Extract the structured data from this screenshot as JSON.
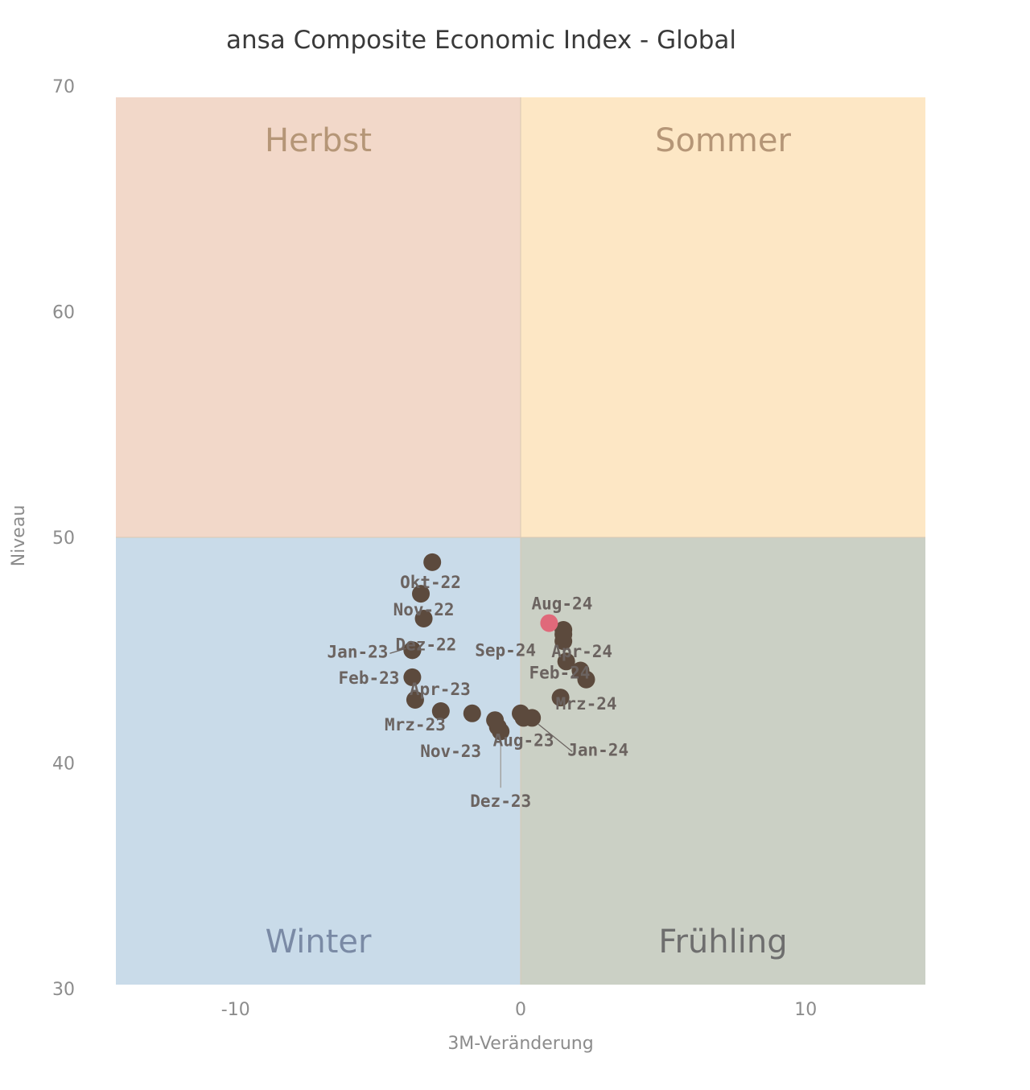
{
  "chart_data": {
    "type": "scatter",
    "title": "ansa Composite Economic Index - Global",
    "xlabel": "3M-Veränderung",
    "ylabel": "Niveau",
    "xlim": [
      -14.2,
      14.2
    ],
    "ylim": [
      30,
      70
    ],
    "x_ticks": [
      -10,
      0,
      10
    ],
    "y_ticks": [
      30,
      40,
      50,
      60,
      70
    ],
    "quadrant_split": {
      "x": 0,
      "y": 50
    },
    "grid": false,
    "quadrants": [
      {
        "name": "Herbst",
        "position": "top-left",
        "fill": "#f2d8c9",
        "label_color": "#b59677"
      },
      {
        "name": "Sommer",
        "position": "top-right",
        "fill": "#fde7c5",
        "label_color": "#b59677"
      },
      {
        "name": "Winter",
        "position": "bottom-left",
        "fill": "#c9dbe9",
        "label_color": "#7a8aa5"
      },
      {
        "name": "Frühling",
        "position": "bottom-right",
        "fill": "#cbd0c5",
        "label_color": "#6e6e6e"
      }
    ],
    "point_color": "#5c4a3d",
    "highlight_color": "#e0697a",
    "points": [
      {
        "label": "",
        "x": -3.1,
        "y": 48.9
      },
      {
        "label": "Okt-22",
        "x": -3.5,
        "y": 47.5
      },
      {
        "label": "Nov-22",
        "x": -3.4,
        "y": 46.4
      },
      {
        "label": "Dez-22",
        "x": -3.8,
        "y": 45.0
      },
      {
        "label": "Jan-23",
        "x": -3.8,
        "y": 45.0
      },
      {
        "label": "Feb-23",
        "x": -3.8,
        "y": 43.8
      },
      {
        "label": "Mrz-23",
        "x": -3.7,
        "y": 42.8
      },
      {
        "label": "Apr-23",
        "x": -2.8,
        "y": 42.3
      },
      {
        "label": "",
        "x": -1.7,
        "y": 42.2
      },
      {
        "label": "Nov-23",
        "x": -0.9,
        "y": 41.9
      },
      {
        "label": "Dez-23",
        "x": -0.7,
        "y": 41.4
      },
      {
        "label": "",
        "x": -0.8,
        "y": 41.6
      },
      {
        "label": "",
        "x": 0.0,
        "y": 42.2
      },
      {
        "label": "Aug-23",
        "x": 0.1,
        "y": 42.0
      },
      {
        "label": "Jan-24",
        "x": 0.4,
        "y": 42.0
      },
      {
        "label": "Mrz-24",
        "x": 1.4,
        "y": 42.9
      },
      {
        "label": "Feb-24",
        "x": 2.3,
        "y": 43.7
      },
      {
        "label": "",
        "x": 2.1,
        "y": 44.1
      },
      {
        "label": "",
        "x": 1.6,
        "y": 44.5
      },
      {
        "label": "Apr-24",
        "x": 1.5,
        "y": 45.4
      },
      {
        "label": "",
        "x": 1.5,
        "y": 45.9
      },
      {
        "label": "Sep-24",
        "x": 1.5,
        "y": 45.7
      },
      {
        "label": "Aug-24",
        "x": 1.0,
        "y": 46.2,
        "highlight": true
      }
    ]
  }
}
